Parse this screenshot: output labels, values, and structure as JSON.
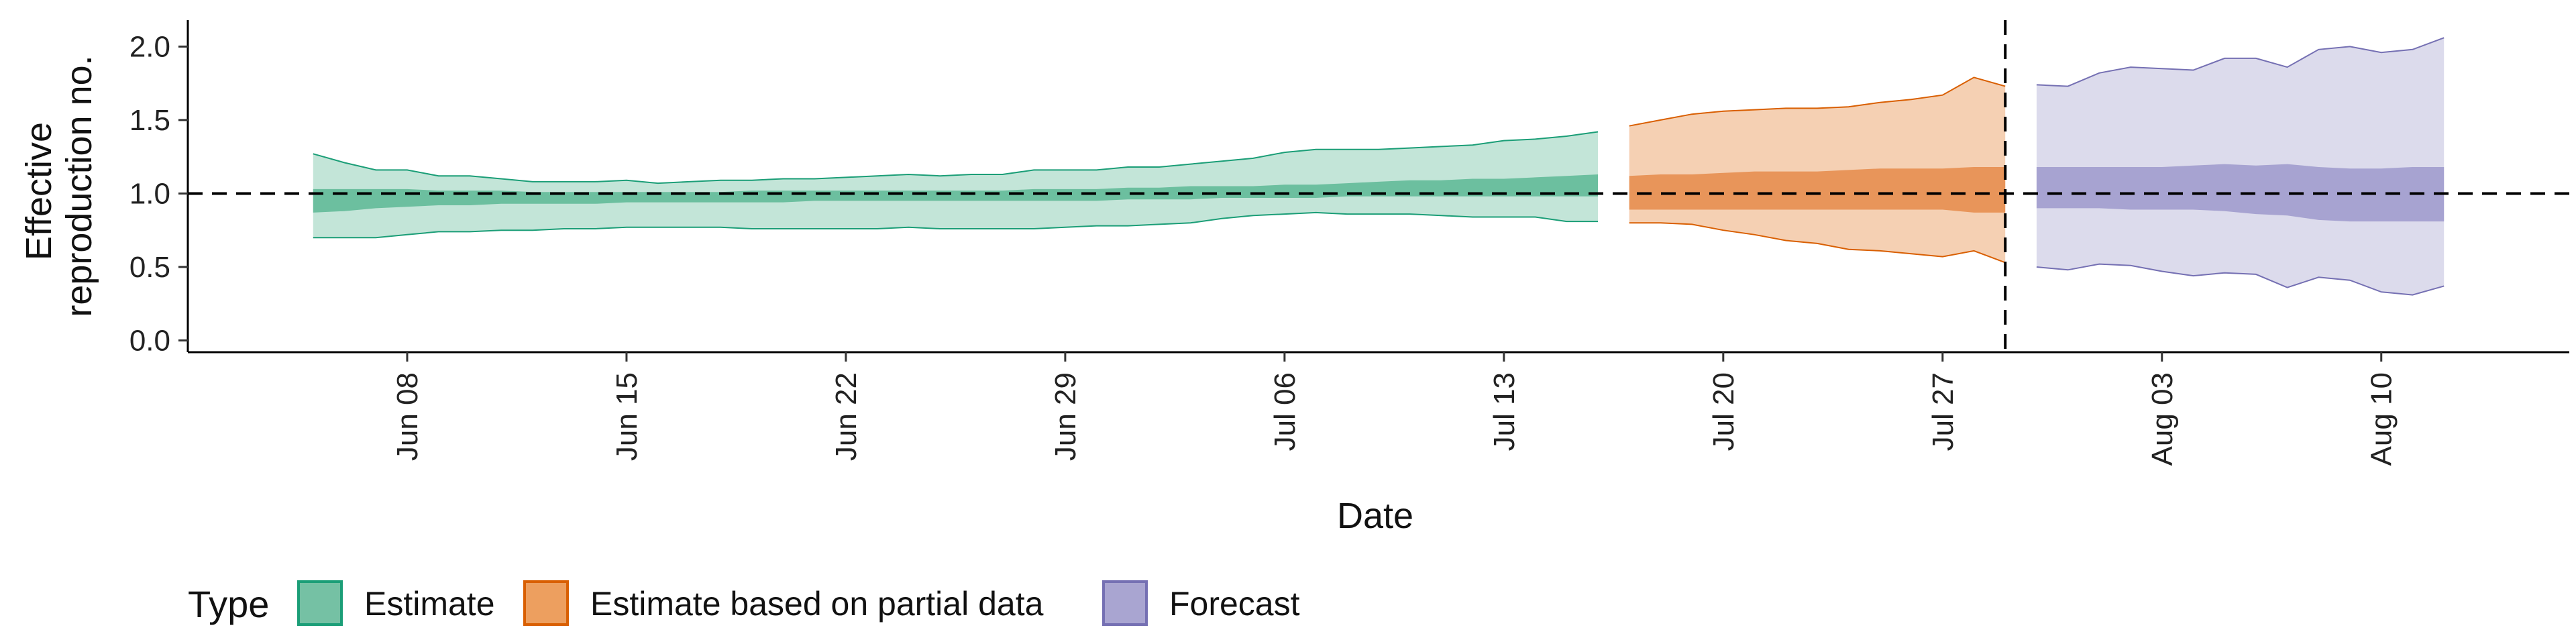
{
  "chart_data": {
    "type": "area",
    "xlabel": "Date",
    "ylabel_lines": [
      "Effective",
      "reproduction no."
    ],
    "x_ticks": [
      {
        "date": "2020-06-08",
        "label": "Jun 08"
      },
      {
        "date": "2020-06-15",
        "label": "Jun 15"
      },
      {
        "date": "2020-06-22",
        "label": "Jun 22"
      },
      {
        "date": "2020-06-29",
        "label": "Jun 29"
      },
      {
        "date": "2020-07-06",
        "label": "Jul 06"
      },
      {
        "date": "2020-07-13",
        "label": "Jul 13"
      },
      {
        "date": "2020-07-20",
        "label": "Jul 20"
      },
      {
        "date": "2020-07-27",
        "label": "Jul 27"
      },
      {
        "date": "2020-08-03",
        "label": "Aug 03"
      },
      {
        "date": "2020-08-10",
        "label": "Aug 10"
      }
    ],
    "y_ticks": [
      {
        "value": 0.0,
        "label": "0.0"
      },
      {
        "value": 0.5,
        "label": "0.5"
      },
      {
        "value": 1.0,
        "label": "1.0"
      },
      {
        "value": 1.5,
        "label": "1.5"
      },
      {
        "value": 2.0,
        "label": "2.0"
      }
    ],
    "xlim": [
      "2020-06-01",
      "2020-08-16"
    ],
    "ylim": [
      -0.08,
      2.18
    ],
    "reference_line_y": 1.0,
    "forecast_line_date": "2020-07-29",
    "legend": {
      "title": "Type",
      "position": "bottom-left",
      "items": [
        {
          "label": "Estimate",
          "fill": "#75c1a4",
          "stroke": "#1b9e77"
        },
        {
          "label": "Estimate based on partial data",
          "fill": "#ed9f5f",
          "stroke": "#d95f02"
        },
        {
          "label": "Forecast",
          "fill": "#a9a5d1",
          "stroke": "#7570b3"
        }
      ]
    },
    "series": [
      {
        "name": "Estimate",
        "outer_fill": "#c3e5d8",
        "inner_fill": "#6cbf9f",
        "stroke": "#1b9e77",
        "x": [
          "2020-06-05",
          "2020-06-06",
          "2020-06-07",
          "2020-06-08",
          "2020-06-09",
          "2020-06-10",
          "2020-06-11",
          "2020-06-12",
          "2020-06-13",
          "2020-06-14",
          "2020-06-15",
          "2020-06-16",
          "2020-06-17",
          "2020-06-18",
          "2020-06-19",
          "2020-06-20",
          "2020-06-21",
          "2020-06-22",
          "2020-06-23",
          "2020-06-24",
          "2020-06-25",
          "2020-06-26",
          "2020-06-27",
          "2020-06-28",
          "2020-06-29",
          "2020-06-30",
          "2020-07-01",
          "2020-07-02",
          "2020-07-03",
          "2020-07-04",
          "2020-07-05",
          "2020-07-06",
          "2020-07-07",
          "2020-07-08",
          "2020-07-09",
          "2020-07-10",
          "2020-07-11",
          "2020-07-12",
          "2020-07-13",
          "2020-07-14",
          "2020-07-15",
          "2020-07-16"
        ],
        "upper90": [
          1.27,
          1.21,
          1.16,
          1.16,
          1.12,
          1.12,
          1.1,
          1.08,
          1.08,
          1.08,
          1.09,
          1.07,
          1.08,
          1.09,
          1.09,
          1.1,
          1.1,
          1.11,
          1.12,
          1.13,
          1.12,
          1.13,
          1.13,
          1.16,
          1.16,
          1.16,
          1.18,
          1.18,
          1.2,
          1.22,
          1.24,
          1.28,
          1.3,
          1.3,
          1.3,
          1.31,
          1.32,
          1.33,
          1.36,
          1.37,
          1.39,
          1.42
        ],
        "upper50": [
          1.03,
          1.03,
          1.03,
          1.03,
          1.02,
          1.02,
          1.02,
          1.01,
          1.01,
          1.01,
          1.01,
          1.01,
          1.01,
          1.01,
          1.02,
          1.02,
          1.02,
          1.02,
          1.02,
          1.02,
          1.02,
          1.02,
          1.02,
          1.03,
          1.03,
          1.03,
          1.04,
          1.04,
          1.05,
          1.05,
          1.05,
          1.06,
          1.06,
          1.07,
          1.08,
          1.09,
          1.09,
          1.1,
          1.1,
          1.11,
          1.12,
          1.13
        ],
        "lower50": [
          0.87,
          0.88,
          0.9,
          0.91,
          0.92,
          0.92,
          0.93,
          0.93,
          0.93,
          0.93,
          0.94,
          0.94,
          0.94,
          0.94,
          0.94,
          0.94,
          0.95,
          0.95,
          0.95,
          0.95,
          0.95,
          0.95,
          0.95,
          0.95,
          0.95,
          0.95,
          0.96,
          0.96,
          0.96,
          0.97,
          0.97,
          0.97,
          0.97,
          0.98,
          0.98,
          0.98,
          0.98,
          0.98,
          0.98,
          0.98,
          0.98,
          0.98
        ],
        "lower90": [
          0.7,
          0.7,
          0.7,
          0.72,
          0.74,
          0.74,
          0.75,
          0.75,
          0.76,
          0.76,
          0.77,
          0.77,
          0.77,
          0.77,
          0.76,
          0.76,
          0.76,
          0.76,
          0.76,
          0.77,
          0.76,
          0.76,
          0.76,
          0.76,
          0.77,
          0.78,
          0.78,
          0.79,
          0.8,
          0.83,
          0.85,
          0.86,
          0.87,
          0.86,
          0.86,
          0.86,
          0.85,
          0.84,
          0.84,
          0.84,
          0.81,
          0.81
        ]
      },
      {
        "name": "Estimate based on partial data",
        "outer_fill": "#f5d0b3",
        "inner_fill": "#e8955a",
        "stroke": "#d95f02",
        "x": [
          "2020-07-17",
          "2020-07-18",
          "2020-07-19",
          "2020-07-20",
          "2020-07-21",
          "2020-07-22",
          "2020-07-23",
          "2020-07-24",
          "2020-07-25",
          "2020-07-26",
          "2020-07-27",
          "2020-07-28",
          "2020-07-29"
        ],
        "upper90": [
          1.46,
          1.5,
          1.54,
          1.56,
          1.57,
          1.58,
          1.58,
          1.59,
          1.62,
          1.64,
          1.67,
          1.79,
          1.73
        ],
        "upper50": [
          1.12,
          1.13,
          1.13,
          1.14,
          1.15,
          1.15,
          1.15,
          1.16,
          1.17,
          1.17,
          1.17,
          1.18,
          1.18
        ],
        "lower50": [
          0.89,
          0.89,
          0.89,
          0.89,
          0.89,
          0.89,
          0.89,
          0.89,
          0.89,
          0.89,
          0.89,
          0.87,
          0.87
        ],
        "lower90": [
          0.8,
          0.8,
          0.79,
          0.75,
          0.72,
          0.68,
          0.66,
          0.62,
          0.61,
          0.59,
          0.57,
          0.61,
          0.53
        ]
      },
      {
        "name": "Forecast",
        "outer_fill": "#dcdbec",
        "inner_fill": "#a7a3d1",
        "stroke": "#7570b3",
        "x": [
          "2020-07-30",
          "2020-07-31",
          "2020-08-01",
          "2020-08-02",
          "2020-08-03",
          "2020-08-04",
          "2020-08-05",
          "2020-08-06",
          "2020-08-07",
          "2020-08-08",
          "2020-08-09",
          "2020-08-10",
          "2020-08-11",
          "2020-08-12"
        ],
        "upper90": [
          1.74,
          1.73,
          1.82,
          1.86,
          1.85,
          1.84,
          1.92,
          1.92,
          1.86,
          1.98,
          2.0,
          1.96,
          1.98,
          2.06
        ],
        "upper50": [
          1.18,
          1.18,
          1.18,
          1.18,
          1.18,
          1.19,
          1.2,
          1.19,
          1.2,
          1.18,
          1.17,
          1.17,
          1.18,
          1.18
        ],
        "lower50": [
          0.9,
          0.9,
          0.9,
          0.89,
          0.89,
          0.89,
          0.88,
          0.86,
          0.85,
          0.82,
          0.81,
          0.81,
          0.81,
          0.81
        ],
        "lower90": [
          0.5,
          0.48,
          0.52,
          0.51,
          0.47,
          0.44,
          0.46,
          0.45,
          0.36,
          0.43,
          0.41,
          0.33,
          0.31,
          0.37
        ]
      }
    ]
  }
}
